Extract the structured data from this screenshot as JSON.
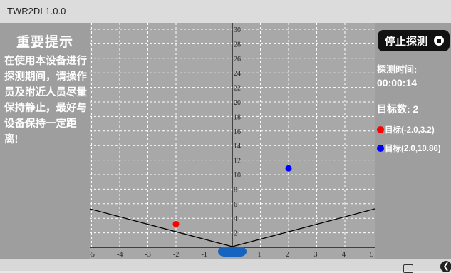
{
  "window": {
    "title": "TWR2DI 1.0.0"
  },
  "notice": {
    "title": "重要提示",
    "body": "在使用本设备进行探测期间，请操作员及附近人员尽量保持静止，最好与设备保持一定距离!"
  },
  "controls": {
    "stop_label": "停止探测",
    "stop_icon": "stop-circle-icon"
  },
  "status": {
    "time_label": "探测时间:",
    "time_value": "00:00:14",
    "count_label": "目标数: 2"
  },
  "targets": [
    {
      "label": "目标(-2.0,3.2)",
      "x": -2.0,
      "y": 3.2,
      "color": "#ff0000"
    },
    {
      "label": "目标(2.0,10.86)",
      "x": 2.0,
      "y": 10.86,
      "color": "#0000ff"
    }
  ],
  "plot": {
    "x_ticks": [
      "-5",
      "-4",
      "-3",
      "-2",
      "-1",
      "1",
      "2",
      "3",
      "4",
      "5"
    ],
    "y_ticks": [
      "2",
      "4",
      "6",
      "8",
      "10",
      "12",
      "14",
      "16",
      "18",
      "20",
      "22",
      "24",
      "26",
      "28",
      "30"
    ],
    "xlim": [
      -5,
      5
    ],
    "ylim": [
      0,
      30
    ],
    "grid": true,
    "background_color": "#a8a8a8",
    "device_color": "#1565c0"
  },
  "navbar": {
    "recent_icon": "square-icon",
    "back_icon": "back-icon"
  }
}
